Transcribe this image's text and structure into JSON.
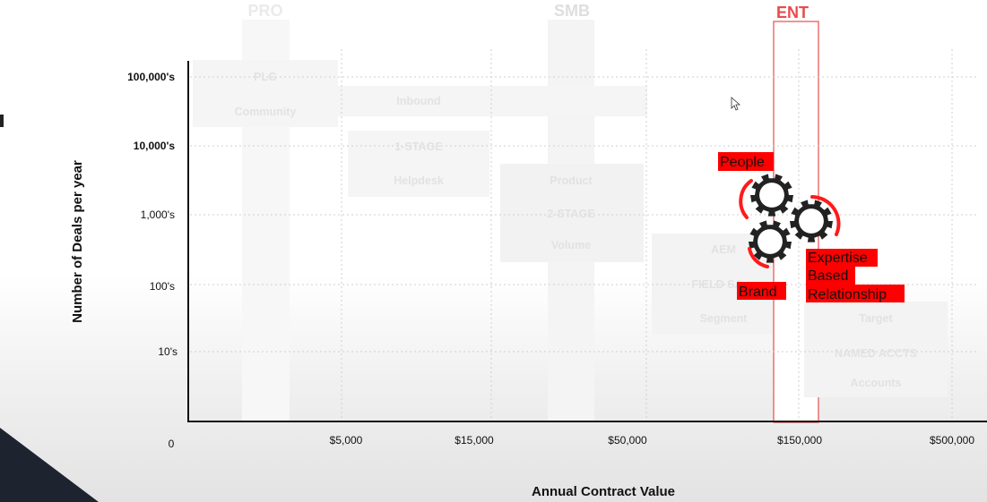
{
  "columns": [
    {
      "label": "PRO",
      "color": "#eaeaea"
    },
    {
      "label": "SMB",
      "color": "#dedede"
    },
    {
      "label": "ENT",
      "color": "#e84c4c"
    }
  ],
  "chart_data": {
    "type": "table",
    "xlabel": "Annual Contract Value",
    "ylabel": "Number of Deals per year",
    "origin_label": "0",
    "x_ticks": [
      "$5,000",
      "$15,000",
      "$50,000",
      "$150,000",
      "$500,000"
    ],
    "y_ticks": [
      "100,000's",
      "10,000's",
      "1,000's",
      "100's",
      "10's"
    ],
    "regions": [
      {
        "labels": [
          "PLG",
          "Community"
        ]
      },
      {
        "labels": [
          "Inbound"
        ]
      },
      {
        "labels": [
          "1-STAGE",
          "Helpdesk"
        ]
      },
      {
        "labels": [
          "Product",
          "2-STAGE",
          "Volume"
        ]
      },
      {
        "labels": [
          "AEM",
          "FIELD SA",
          "Segment"
        ]
      },
      {
        "labels": [
          "Target",
          "NAMED ACCTS",
          "Accounts"
        ]
      }
    ],
    "annotations": [
      "People",
      "Brand",
      "Expertise",
      "Based",
      "Relationship"
    ],
    "highlight_color": "#ff0000",
    "gear_color": "#222222"
  }
}
